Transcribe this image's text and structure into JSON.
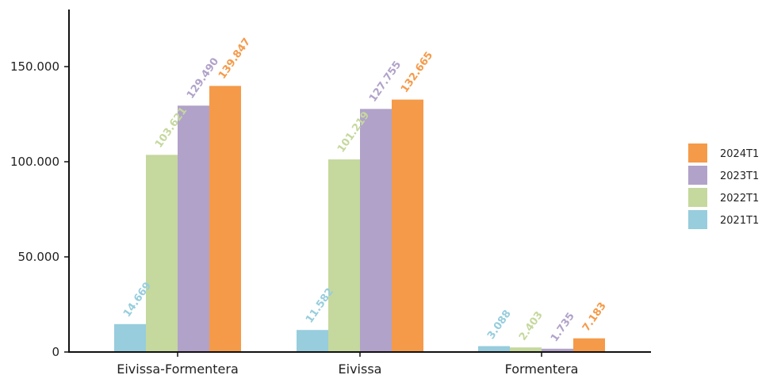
{
  "chart_data": {
    "type": "bar",
    "categories": [
      "Eivissa-Formentera",
      "Eivissa",
      "Formentera"
    ],
    "series": [
      {
        "name": "2021T1",
        "color": "#97cddd",
        "values": [
          14669,
          11582,
          3088
        ],
        "labels": [
          "14.669",
          "11.582",
          "3.088"
        ]
      },
      {
        "name": "2022T1",
        "color": "#c5d89d",
        "values": [
          103621,
          101219,
          2403
        ],
        "labels": [
          "103.621",
          "101.219",
          "2.403"
        ]
      },
      {
        "name": "2023T1",
        "color": "#b1a2c9",
        "values": [
          129490,
          127755,
          1735
        ],
        "labels": [
          "129.490",
          "127.755",
          "1.735"
        ]
      },
      {
        "name": "2024T1",
        "color": "#f59a49",
        "values": [
          139847,
          132665,
          7183
        ],
        "labels": [
          "139.847",
          "132.665",
          "7.183"
        ]
      }
    ],
    "legend_order": [
      "2024T1",
      "2023T1",
      "2022T1",
      "2021T1"
    ],
    "yticks": [
      0,
      50000,
      100000,
      150000
    ],
    "ytick_labels": [
      "0",
      "50.000",
      "100.000",
      "150.000"
    ],
    "ylim": [
      0,
      180000
    ],
    "legend_position": "right",
    "grid": false
  }
}
